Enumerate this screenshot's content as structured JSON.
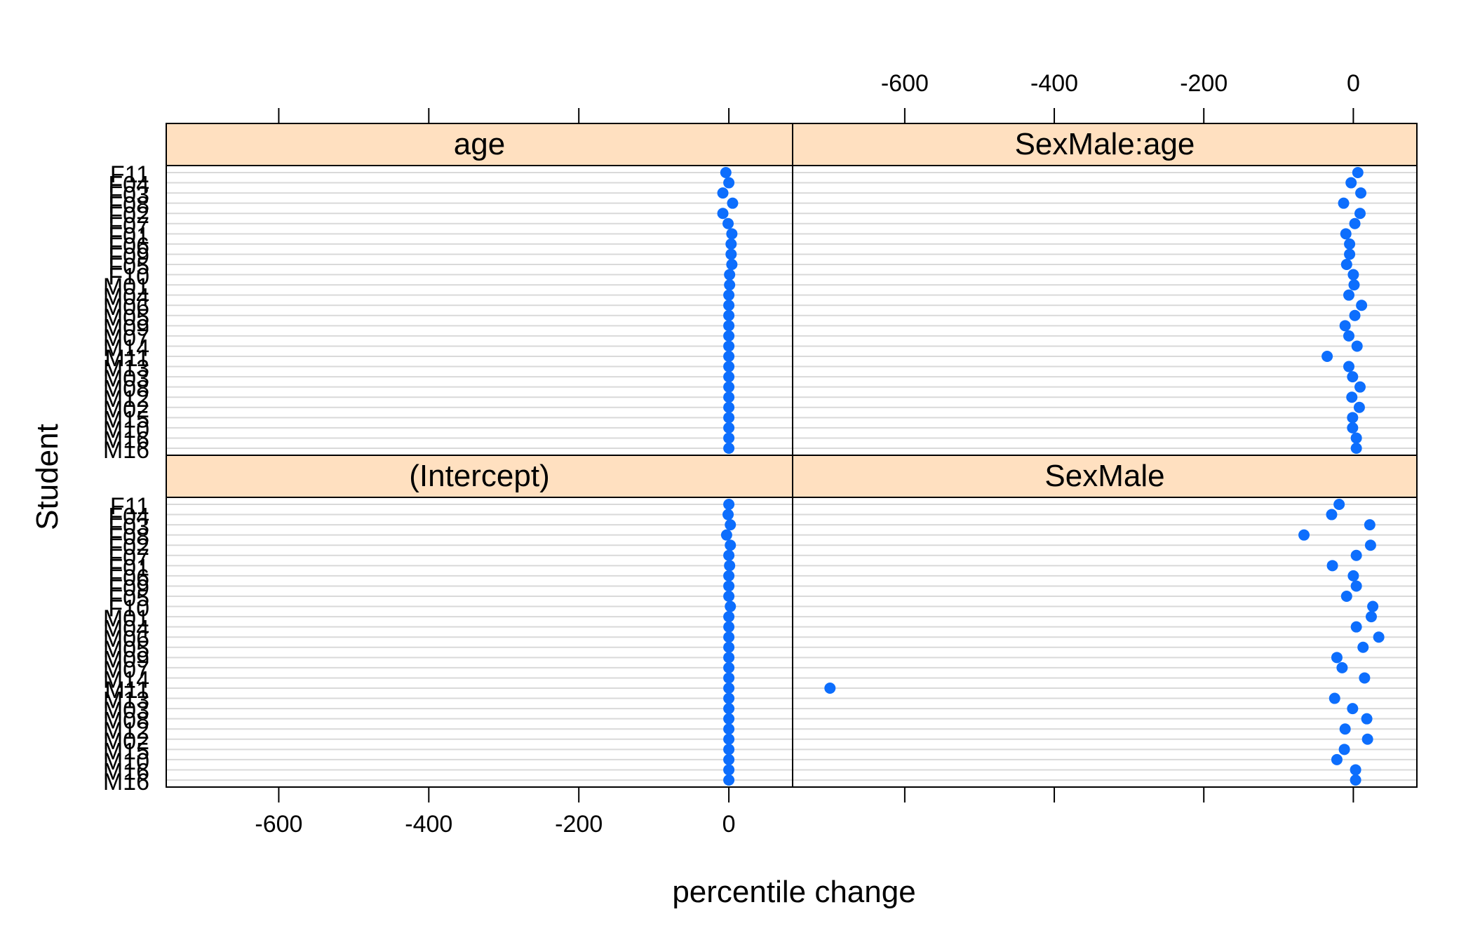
{
  "chart_data": {
    "type": "scatter",
    "xlabel": "percentile change",
    "ylabel": "Student",
    "xlim": [
      -750,
      85
    ],
    "x_ticks": [
      -600,
      -400,
      -200,
      0
    ],
    "x_tick_labels": [
      "-600",
      "-400",
      "-200",
      "0"
    ],
    "grid": true,
    "point_color": "#0D6EFD",
    "strip_color": "#FFE0C0",
    "students": [
      "F11",
      "F04",
      "F03",
      "F08",
      "F02",
      "F07",
      "F01",
      "F06",
      "F09",
      "F05",
      "F10",
      "M01",
      "M04",
      "M06",
      "M05",
      "M09",
      "M07",
      "M14",
      "M11",
      "M13",
      "M03",
      "M08",
      "M12",
      "M02",
      "M15",
      "M10",
      "M16",
      "M16"
    ],
    "panels": [
      {
        "name": "age",
        "values": [
          -4,
          0,
          -8,
          5,
          -8,
          -1,
          4,
          3,
          3,
          4,
          1,
          1,
          0,
          0,
          0,
          0,
          0,
          0,
          0,
          0,
          0,
          0,
          0,
          0,
          0,
          0,
          0,
          0
        ]
      },
      {
        "name": "SexMale:age",
        "values": [
          6,
          -3,
          10,
          -13,
          9,
          2,
          -10,
          -5,
          -5,
          -9,
          0,
          1,
          -6,
          11,
          2,
          -11,
          -6,
          5,
          -35,
          -6,
          -1,
          9,
          -2,
          8,
          -1,
          -1,
          4,
          4
        ]
      },
      {
        "name": "(Intercept)",
        "values": [
          0,
          -1,
          2,
          -3,
          2,
          0,
          1,
          0,
          0,
          0,
          2,
          0,
          0,
          0,
          0,
          0,
          0,
          0,
          0,
          0,
          0,
          0,
          0,
          0,
          0,
          0,
          0,
          0
        ]
      },
      {
        "name": "SexMale",
        "values": [
          -19,
          -29,
          22,
          -66,
          23,
          4,
          -28,
          0,
          4,
          -9,
          26,
          24,
          4,
          34,
          13,
          -22,
          -15,
          15,
          -700,
          -25,
          -1,
          18,
          -11,
          19,
          -12,
          -22,
          3,
          3
        ]
      }
    ]
  }
}
